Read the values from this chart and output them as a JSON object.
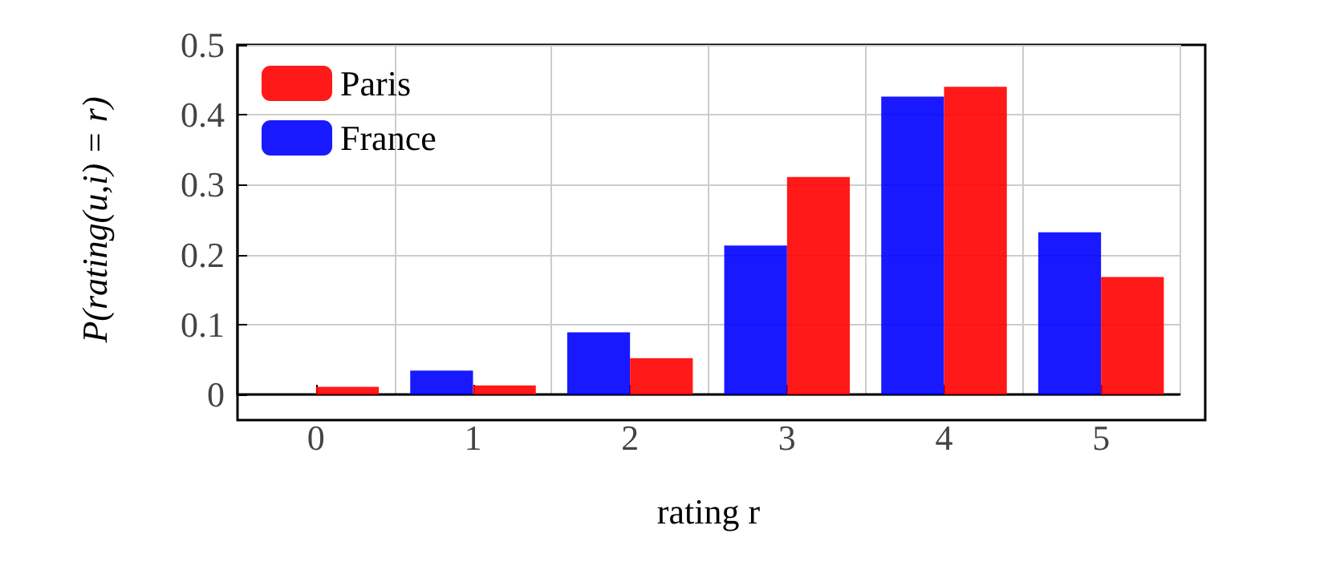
{
  "chart_data": {
    "type": "bar",
    "xlabel": "rating r",
    "ylabel": "P(rating(u,i) = r)",
    "categories": [
      "0",
      "1",
      "2",
      "3",
      "4",
      "5"
    ],
    "series": [
      {
        "name": "Paris",
        "color": "#ff0000",
        "values": [
          0.011,
          0.013,
          0.052,
          0.311,
          0.44,
          0.168
        ]
      },
      {
        "name": "France",
        "color": "#0000ff",
        "values": [
          0,
          0.034,
          0.089,
          0.213,
          0.426,
          0.232
        ]
      }
    ],
    "ylim": [
      0,
      0.5
    ],
    "yticks": [
      0,
      0.1,
      0.2,
      0.3,
      0.4,
      0.5
    ],
    "grid": true,
    "legend": "top left"
  }
}
